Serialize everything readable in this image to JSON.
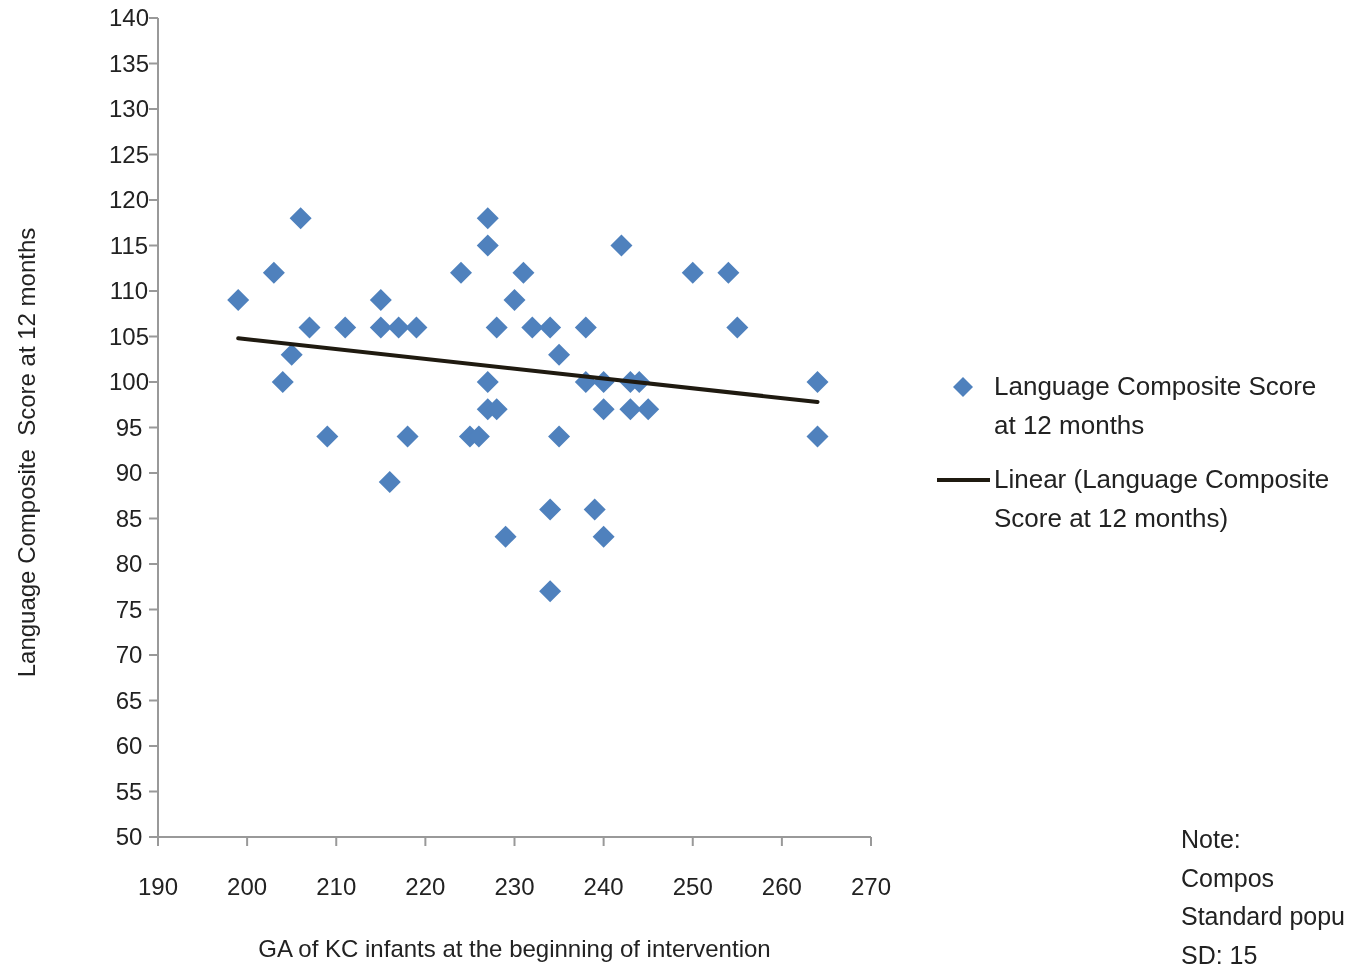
{
  "chart_data": {
    "type": "scatter",
    "xlabel": "GA of KC infants at the beginning of intervention",
    "ylabel": "Language Composite  Score at 12 months",
    "xlim": [
      190,
      270
    ],
    "xticks": [
      190,
      200,
      210,
      220,
      230,
      240,
      250,
      260,
      270
    ],
    "ylim": [
      50,
      140
    ],
    "yticks": [
      50,
      55,
      60,
      65,
      70,
      75,
      80,
      85,
      90,
      95,
      100,
      105,
      110,
      115,
      120,
      125,
      130,
      135,
      140
    ],
    "grid": false,
    "legend": "right",
    "annotations": [
      "Note:",
      "Compos",
      "Standard popu",
      "SD: 15"
    ],
    "series": [
      {
        "name": "Language Composite Score at 12 months",
        "color": "#4f81bd",
        "marker": "diamond",
        "x": [
          199,
          203,
          206,
          204,
          205,
          207,
          209,
          211,
          215,
          215,
          216,
          217,
          218,
          219,
          224,
          225,
          226,
          227,
          227,
          227,
          227,
          228,
          228,
          229,
          230,
          231,
          232,
          234,
          234,
          234,
          235,
          235,
          238,
          238,
          239,
          240,
          240,
          240,
          242,
          243,
          243,
          244,
          245,
          250,
          254,
          255,
          264,
          264
        ],
        "values": [
          109,
          112,
          118,
          100,
          103,
          106,
          94,
          106,
          109,
          106,
          89,
          106,
          94,
          106,
          112,
          94,
          94,
          118,
          115,
          100,
          97,
          97,
          106,
          83,
          109,
          112,
          106,
          106,
          86,
          77,
          103,
          94,
          106,
          100,
          86,
          100,
          97,
          83,
          115,
          100,
          97,
          100,
          97,
          112,
          112,
          106,
          100,
          94
        ]
      },
      {
        "name": "Linear (Language Composite Score at 12 months)",
        "type": "line",
        "color": "#1f1a10",
        "marker": "none",
        "line_style": "solid",
        "x": [
          199,
          264
        ],
        "values": [
          104.8,
          97.8
        ]
      }
    ]
  }
}
